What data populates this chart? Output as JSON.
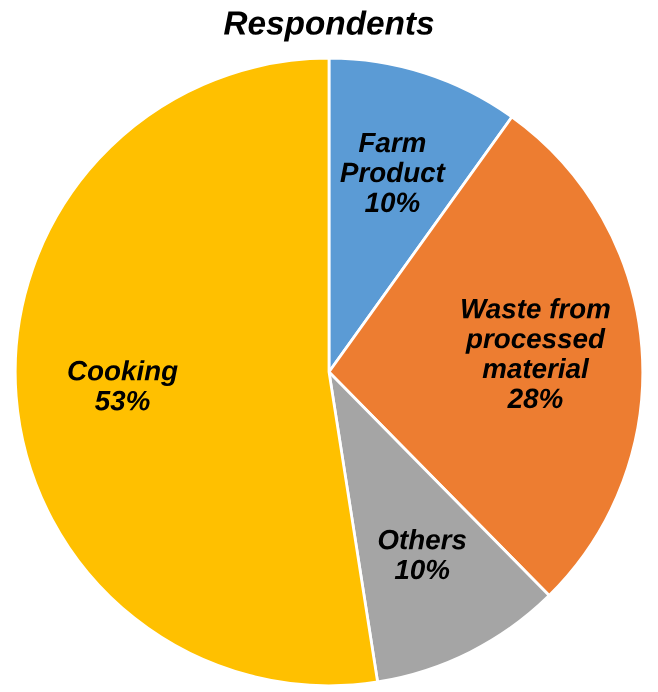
{
  "chart_data": {
    "type": "pie",
    "title": "Respondents",
    "categories": [
      "Farm\nProduct",
      "Waste from\nprocessed\nmaterial",
      "Others",
      "Cooking"
    ],
    "values": [
      10,
      28,
      10,
      53
    ],
    "value_labels": [
      "10%",
      "28%",
      "10%",
      "53%"
    ],
    "colors": [
      "#5b9bd5",
      "#ed7d31",
      "#a5a5a5",
      "#ffc000"
    ],
    "legend": false
  }
}
